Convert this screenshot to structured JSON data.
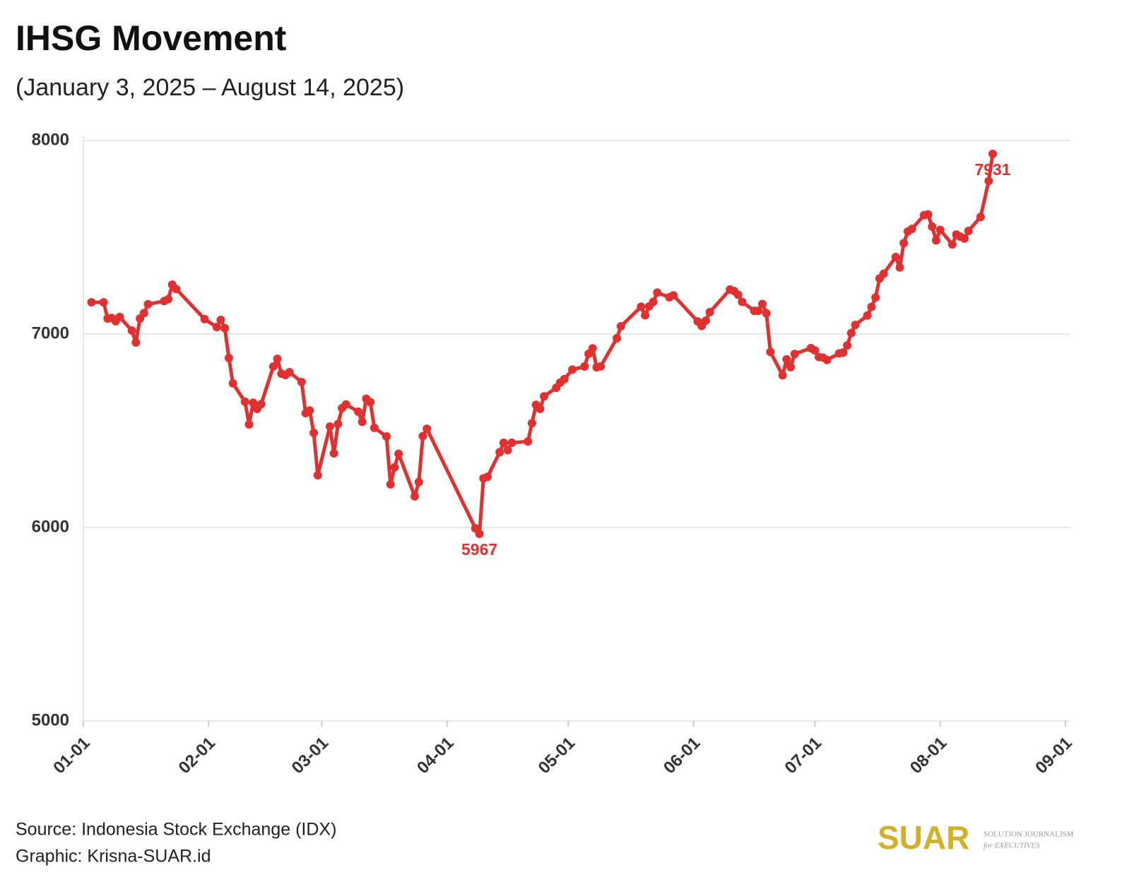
{
  "chart_data": {
    "type": "line",
    "title": "IHSG Movement",
    "subtitle": "(January 3, 2025 – August 14, 2025)",
    "color": "#e03030",
    "grid": true,
    "x": [
      "01-03",
      "01-06",
      "01-07",
      "01-08",
      "01-09",
      "01-10",
      "01-13",
      "01-14",
      "01-15",
      "01-16",
      "01-17",
      "01-21",
      "01-22",
      "01-23",
      "01-24",
      "01-31",
      "02-03",
      "02-04",
      "02-05",
      "02-06",
      "02-07",
      "02-10",
      "02-11",
      "02-12",
      "02-13",
      "02-14",
      "02-17",
      "02-18",
      "02-19",
      "02-20",
      "02-21",
      "02-24",
      "02-25",
      "02-26",
      "02-27",
      "02-28",
      "03-03",
      "03-04",
      "03-05",
      "03-06",
      "03-07",
      "03-10",
      "03-11",
      "03-12",
      "03-13",
      "03-14",
      "03-17",
      "03-18",
      "03-19",
      "03-20",
      "03-24",
      "03-25",
      "03-26",
      "03-27",
      "04-08",
      "04-09",
      "04-10",
      "04-11",
      "04-14",
      "04-15",
      "04-16",
      "04-17",
      "04-21",
      "04-22",
      "04-23",
      "04-24",
      "04-25",
      "04-28",
      "04-29",
      "04-30",
      "05-02",
      "05-05",
      "05-06",
      "05-07",
      "05-08",
      "05-09",
      "05-13",
      "05-14",
      "05-19",
      "05-20",
      "05-21",
      "05-22",
      "05-23",
      "05-26",
      "05-27",
      "06-02",
      "06-03",
      "06-04",
      "06-05",
      "06-10",
      "06-11",
      "06-12",
      "06-13",
      "06-16",
      "06-17",
      "06-18",
      "06-19",
      "06-20",
      "06-23",
      "06-24",
      "06-25",
      "06-26",
      "06-30",
      "07-01",
      "07-02",
      "07-03",
      "07-04",
      "07-07",
      "07-08",
      "07-09",
      "07-10",
      "07-11",
      "07-14",
      "07-15",
      "07-16",
      "07-17",
      "07-18",
      "07-21",
      "07-22",
      "07-23",
      "07-24",
      "07-25",
      "07-28",
      "07-29",
      "07-30",
      "07-31",
      "08-01",
      "08-04",
      "08-05",
      "08-06",
      "08-07",
      "08-08",
      "08-11",
      "08-13",
      "08-14"
    ],
    "values": [
      7164,
      7164,
      7080,
      7083,
      7066,
      7088,
      7018,
      6956,
      7080,
      7108,
      7154,
      7170,
      7180,
      7255,
      7232,
      7077,
      7036,
      7073,
      7030,
      6876,
      6745,
      6650,
      6533,
      6645,
      6613,
      6638,
      6832,
      6872,
      6795,
      6788,
      6803,
      6752,
      6591,
      6605,
      6489,
      6270,
      6522,
      6383,
      6535,
      6617,
      6636,
      6599,
      6546,
      6665,
      6648,
      6515,
      6471,
      6223,
      6311,
      6381,
      6161,
      6235,
      6472,
      6510,
      5996,
      5967,
      6254,
      6262,
      6389,
      6438,
      6400,
      6438,
      6445,
      6539,
      6634,
      6613,
      6678,
      6722,
      6749,
      6767,
      6816,
      6832,
      6898,
      6926,
      6828,
      6833,
      6978,
      7040,
      7141,
      7097,
      7143,
      7166,
      7214,
      7190,
      7200,
      7065,
      7042,
      7069,
      7113,
      7230,
      7222,
      7203,
      7166,
      7120,
      7120,
      7155,
      7107,
      6907,
      6787,
      6869,
      6829,
      6897,
      6927,
      6915,
      6881,
      6878,
      6866,
      6900,
      6904,
      6941,
      7005,
      7047,
      7096,
      7140,
      7189,
      7287,
      7311,
      7398,
      7344,
      7470,
      7530,
      7543,
      7614,
      7618,
      7555,
      7484,
      7538,
      7463,
      7514,
      7503,
      7493,
      7533,
      7605,
      7791,
      7931
    ],
    "value_labels": [
      null,
      null,
      null,
      null,
      null,
      null,
      null,
      null,
      null,
      null,
      null,
      null,
      null,
      null,
      null,
      null,
      null,
      null,
      null,
      null,
      null,
      null,
      null,
      null,
      null,
      null,
      null,
      null,
      null,
      null,
      null,
      null,
      null,
      null,
      null,
      null,
      null,
      null,
      null,
      null,
      null,
      null,
      null,
      null,
      null,
      null,
      null,
      null,
      null,
      null,
      null,
      null,
      null,
      null,
      null,
      "5967",
      null,
      null,
      null,
      null,
      null,
      null,
      null,
      null,
      null,
      null,
      null,
      null,
      null,
      null,
      null,
      null,
      null,
      null,
      null,
      null,
      null,
      null,
      null,
      null,
      null,
      null,
      null,
      null,
      null,
      null,
      null,
      null,
      null,
      null,
      null,
      null,
      null,
      null,
      null,
      null,
      null,
      null,
      null,
      null,
      null,
      null,
      null,
      null,
      null,
      null,
      null,
      null,
      null,
      null,
      null,
      null,
      null,
      null,
      null,
      null,
      null,
      null,
      null,
      null,
      null,
      null,
      null,
      null,
      null,
      null,
      null,
      null,
      null,
      null,
      null,
      null,
      null,
      null,
      "7931"
    ],
    "xlim": [
      "01-01",
      "09-01"
    ],
    "xticks": [
      "01-01",
      "02-01",
      "03-01",
      "04-01",
      "05-01",
      "06-01",
      "07-01",
      "08-01",
      "09-01"
    ],
    "ylim": [
      5000,
      8000
    ],
    "yticks": [
      5000,
      6000,
      7000,
      8000
    ]
  },
  "footer": {
    "source": "Source: Indonesia Stock Exchange (IDX)",
    "credit": "Graphic: Krisna-SUAR.id"
  },
  "logo": {
    "name": "SUAR",
    "line1": "SOLUTION JOURNALISM",
    "line2": "for EXECUTIVES"
  }
}
